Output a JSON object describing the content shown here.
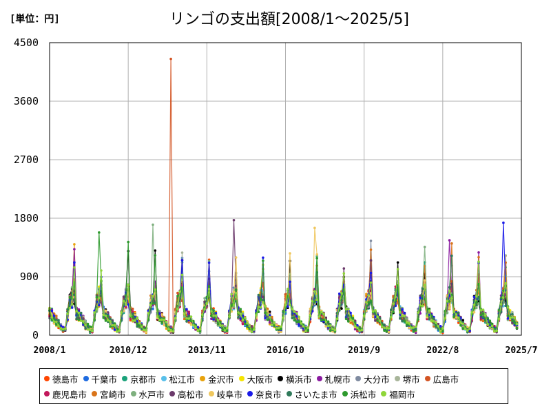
{
  "unit_label": "[単位：円]",
  "title": "リンゴの支出額[2008/1～2025/5]",
  "chart_data": {
    "type": "line",
    "title": "リンゴの支出額[2008/1～2025/5]",
    "xlabel": "",
    "ylabel": "",
    "ylim": [
      0,
      4500
    ],
    "yticks": [
      "0",
      "900",
      "1800",
      "2700",
      "3600",
      "4500"
    ],
    "xticks": [
      "2008/1",
      "2010/12",
      "2013/11",
      "2016/10",
      "2019/9",
      "2022/8",
      "2025/7"
    ],
    "grid": true,
    "legend_position": "bottom",
    "series": [
      {
        "name": "徳島市",
        "color": "#ff4500"
      },
      {
        "name": "千葉市",
        "color": "#1e6be0"
      },
      {
        "name": "京都市",
        "color": "#1aa27a"
      },
      {
        "name": "松江市",
        "color": "#59c0ea"
      },
      {
        "name": "金沢市",
        "color": "#e8a20c"
      },
      {
        "name": "大阪市",
        "color": "#f5e400"
      },
      {
        "name": "横浜市",
        "color": "#000000"
      },
      {
        "name": "札幌市",
        "color": "#8a1aa0"
      },
      {
        "name": "大分市",
        "color": "#7f8ba0"
      },
      {
        "name": "堺市",
        "color": "#a8b59a"
      },
      {
        "name": "広島市",
        "color": "#d35423"
      },
      {
        "name": "鹿児島市",
        "color": "#c2185b"
      },
      {
        "name": "宮崎市",
        "color": "#d9741a"
      },
      {
        "name": "水戸市",
        "color": "#7fb07f"
      },
      {
        "name": "高松市",
        "color": "#6b3a6b"
      },
      {
        "name": "岐阜市",
        "color": "#efc75e"
      },
      {
        "name": "奈良市",
        "color": "#1a1ae8"
      },
      {
        "name": "さいたま市",
        "color": "#2f7a5a"
      },
      {
        "name": "浜松市",
        "color": "#2e9a2e"
      },
      {
        "name": "福岡市",
        "color": "#8fd63a"
      }
    ],
    "notable_points": [
      {
        "series": "広島市",
        "x": "2012/7",
        "y": 4250
      },
      {
        "series": "高松市",
        "x": "2014/11",
        "y": 1770
      },
      {
        "series": "奈良市",
        "x": "2024/11",
        "y": 1730
      },
      {
        "series": "水戸市",
        "x": "2011/11",
        "y": 1700
      },
      {
        "series": "岐阜市",
        "x": "2017/11",
        "y": 1650
      },
      {
        "series": "浜松市",
        "x": "2009/11",
        "y": 1580
      },
      {
        "series": "札幌市",
        "x": "2022/11",
        "y": 1460
      }
    ]
  }
}
